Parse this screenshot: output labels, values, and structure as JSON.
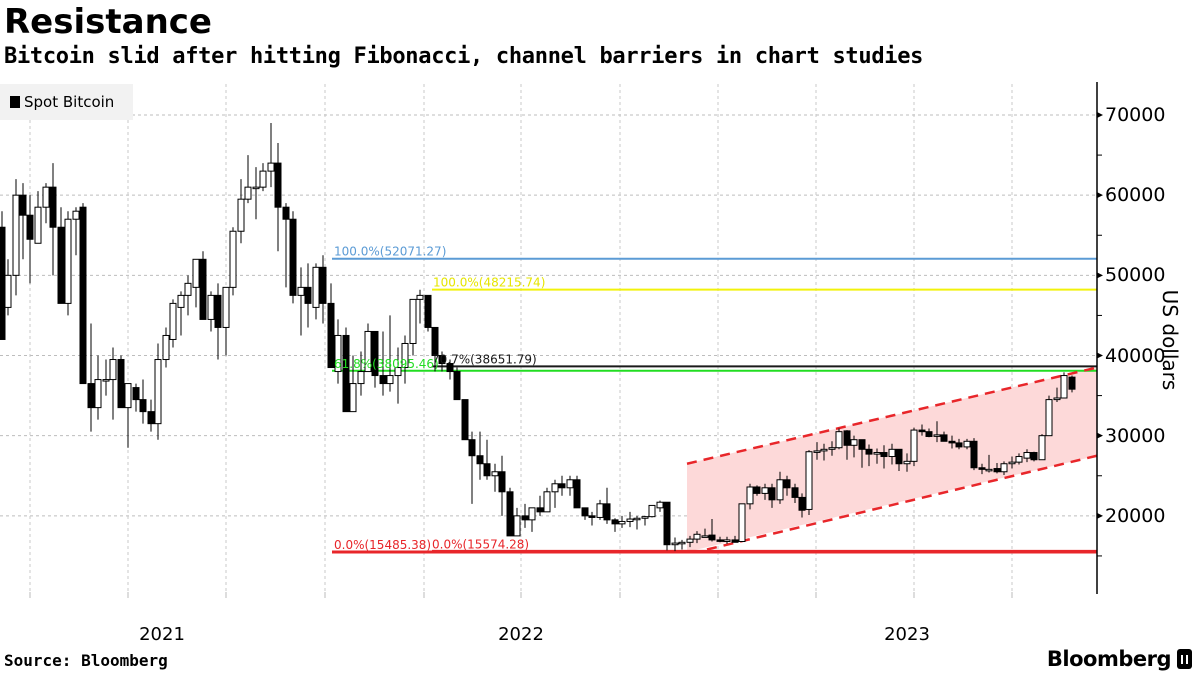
{
  "header": {
    "title": "Resistance",
    "subtitle": "Bitcoin slid after hitting Fibonacci, channel barriers in chart studies"
  },
  "legend": {
    "label": "Spot Bitcoin",
    "color": "#000000"
  },
  "footer": {
    "source": "Source: Bloomberg",
    "brand": "Bloomberg"
  },
  "chart_data": {
    "type": "candlestick",
    "title": "Resistance",
    "subtitle": "Bitcoin slid after hitting Fibonacci, channel barriers in chart studies",
    "xlabel": "",
    "ylabel": "US dollars",
    "ylim": [
      10000,
      74000
    ],
    "yticks": [
      20000,
      30000,
      40000,
      50000,
      60000,
      70000
    ],
    "xticks": [
      {
        "label": "2021",
        "x": 162
      },
      {
        "label": "2022",
        "x": 521
      },
      {
        "label": "2023",
        "x": 907
      }
    ],
    "grid": true,
    "legend": {
      "position": "top-left",
      "entries": [
        "Spot Bitcoin"
      ]
    },
    "series": [
      {
        "name": "Spot Bitcoin",
        "interval": "weekly",
        "ohlc_columns": [
          "x_px",
          "open",
          "high",
          "low",
          "close"
        ],
        "candles": [
          [
            2,
            56000,
            58000,
            48000,
            42000
          ],
          [
            8,
            46000,
            52000,
            45000,
            50000
          ],
          [
            16,
            50000,
            62000,
            47500,
            60000
          ],
          [
            23,
            60000,
            61500,
            52000,
            57500
          ],
          [
            30,
            57500,
            60000,
            49000,
            54500
          ],
          [
            38,
            54000,
            60500,
            55000,
            58500
          ],
          [
            46,
            58500,
            61500,
            56500,
            61000
          ],
          [
            53,
            61000,
            64000,
            50000,
            56000
          ],
          [
            61,
            56000,
            58500,
            46500,
            46500
          ],
          [
            68,
            46500,
            58000,
            45000,
            57000
          ],
          [
            76,
            57000,
            58500,
            52500,
            58000
          ],
          [
            83,
            58500,
            59000,
            41500,
            36500
          ],
          [
            91,
            36500,
            44000,
            30500,
            33500
          ],
          [
            98,
            33500,
            40000,
            32000,
            37000
          ],
          [
            106,
            37000,
            39500,
            35000,
            37000
          ],
          [
            113,
            37000,
            41000,
            32000,
            39500
          ],
          [
            121,
            39500,
            40000,
            34500,
            33500
          ],
          [
            128,
            33500,
            36500,
            28500,
            36500
          ],
          [
            136,
            36000,
            36500,
            33000,
            34500
          ],
          [
            143,
            34500,
            37000,
            31500,
            33000
          ],
          [
            151,
            33000,
            34500,
            30500,
            31500
          ],
          [
            158,
            31500,
            41500,
            29500,
            39500
          ],
          [
            166,
            39500,
            43500,
            38500,
            42500
          ],
          [
            173,
            42000,
            47000,
            41000,
            46500
          ],
          [
            181,
            46000,
            48000,
            42500,
            47500
          ],
          [
            188,
            47500,
            50000,
            45000,
            49000
          ],
          [
            196,
            48500,
            52000,
            46000,
            52000
          ],
          [
            203,
            52000,
            53000,
            44500,
            44500
          ],
          [
            211,
            44500,
            48000,
            43000,
            47500
          ],
          [
            218,
            47500,
            49000,
            39500,
            43500
          ],
          [
            226,
            43500,
            48500,
            40000,
            48500
          ],
          [
            233,
            48500,
            56000,
            47500,
            55500
          ],
          [
            241,
            55500,
            62000,
            54000,
            59500
          ],
          [
            248,
            59500,
            65000,
            59000,
            61000
          ],
          [
            256,
            61000,
            63500,
            57000,
            61000
          ],
          [
            263,
            61000,
            64000,
            60500,
            63000
          ],
          [
            271,
            63000,
            69000,
            61000,
            64000
          ],
          [
            278,
            64000,
            66500,
            53000,
            58500
          ],
          [
            286,
            58500,
            59000,
            48500,
            57000
          ],
          [
            293,
            57000,
            58000,
            46500,
            47500
          ],
          [
            301,
            47500,
            51000,
            42500,
            48500
          ],
          [
            308,
            48500,
            51500,
            43500,
            46500
          ],
          [
            316,
            46000,
            51500,
            44500,
            51000
          ],
          [
            323,
            51000,
            52500,
            44000,
            46500
          ],
          [
            331,
            46500,
            49000,
            38500,
            38500
          ],
          [
            338,
            38000,
            44500,
            36500,
            42500
          ],
          [
            346,
            42500,
            43500,
            33000,
            33000
          ],
          [
            353,
            33000,
            40000,
            33000,
            36500
          ],
          [
            361,
            36500,
            40500,
            35000,
            38000
          ],
          [
            368,
            38000,
            44000,
            39000,
            43000
          ],
          [
            375,
            43000,
            42000,
            36000,
            37500
          ],
          [
            383,
            37500,
            43000,
            35000,
            36500
          ],
          [
            390,
            36500,
            45000,
            35500,
            37500
          ],
          [
            398,
            37500,
            41000,
            34000,
            38500
          ],
          [
            405,
            38500,
            42500,
            36500,
            41500
          ],
          [
            413,
            41500,
            47000,
            40000,
            47000
          ],
          [
            420,
            47000,
            48200,
            44000,
            47500
          ],
          [
            428,
            47500,
            47000,
            43000,
            43500
          ],
          [
            435,
            43500,
            43500,
            38000,
            40000
          ],
          [
            442,
            40000,
            40500,
            38000,
            39000
          ],
          [
            450,
            39000,
            39500,
            37000,
            38000
          ],
          [
            457,
            38000,
            38500,
            35000,
            34500
          ],
          [
            465,
            34500,
            34500,
            29500,
            29500
          ],
          [
            472,
            29500,
            30500,
            21500,
            27500
          ],
          [
            480,
            27500,
            30500,
            24500,
            26500
          ],
          [
            487,
            26500,
            29500,
            24500,
            25000
          ],
          [
            495,
            25000,
            26500,
            23000,
            25500
          ],
          [
            502,
            25500,
            27500,
            20000,
            23000
          ],
          [
            510,
            23000,
            23500,
            17500,
            17500
          ],
          [
            517,
            17500,
            21000,
            17500,
            20000
          ],
          [
            525,
            20000,
            21500,
            18500,
            19500
          ],
          [
            532,
            19500,
            21000,
            18000,
            21000
          ],
          [
            540,
            21000,
            22500,
            20000,
            20500
          ],
          [
            547,
            20500,
            23500,
            20500,
            23000
          ],
          [
            555,
            23000,
            24500,
            21000,
            24000
          ],
          [
            562,
            24000,
            25000,
            22500,
            23500
          ],
          [
            570,
            23500,
            25000,
            22500,
            24500
          ],
          [
            577,
            24500,
            25000,
            21000,
            21000
          ],
          [
            585,
            21000,
            21000,
            19500,
            20000
          ],
          [
            592,
            20000,
            20500,
            18800,
            19800
          ],
          [
            600,
            19800,
            22000,
            19500,
            21500
          ],
          [
            607,
            21500,
            23500,
            19000,
            19500
          ],
          [
            615,
            19500,
            19700,
            18000,
            19000
          ],
          [
            622,
            19000,
            20000,
            18500,
            19300
          ],
          [
            630,
            19300,
            20500,
            18600,
            19600
          ],
          [
            637,
            19600,
            20000,
            18300,
            19700
          ],
          [
            645,
            19700,
            20000,
            18800,
            19900
          ],
          [
            652,
            19900,
            21300,
            19800,
            21300
          ],
          [
            660,
            21000,
            21900,
            20500,
            21700
          ],
          [
            667,
            21700,
            21700,
            15700,
            16400
          ],
          [
            675,
            16400,
            17300,
            15600,
            16600
          ],
          [
            682,
            16600,
            17000,
            15800,
            16700
          ],
          [
            690,
            16700,
            17500,
            16100,
            17100
          ],
          [
            697,
            17100,
            18100,
            16600,
            17700
          ],
          [
            705,
            17400,
            18400,
            17300,
            17500
          ],
          [
            712,
            17600,
            19600,
            16800,
            17000
          ],
          [
            720,
            17000,
            17400,
            16700,
            16900
          ],
          [
            727,
            16800,
            17400,
            16500,
            17000
          ],
          [
            735,
            17000,
            17500,
            16800,
            16700
          ],
          [
            742,
            16800,
            21500,
            16900,
            21500
          ],
          [
            750,
            21500,
            24000,
            20800,
            23600
          ],
          [
            757,
            23600,
            23800,
            22500,
            22800
          ],
          [
            765,
            22800,
            24000,
            22000,
            23500
          ],
          [
            772,
            23500,
            24000,
            21000,
            22000
          ],
          [
            780,
            22000,
            25500,
            21500,
            24500
          ],
          [
            787,
            24500,
            25000,
            22500,
            23500
          ],
          [
            795,
            23500,
            24000,
            21600,
            22300
          ],
          [
            802,
            22300,
            22800,
            19800,
            20700
          ],
          [
            809,
            20800,
            28200,
            20100,
            28000
          ],
          [
            817,
            28000,
            29200,
            27000,
            28100
          ],
          [
            824,
            28100,
            29000,
            26900,
            28300
          ],
          [
            832,
            28300,
            29300,
            27500,
            28500
          ],
          [
            839,
            28500,
            30900,
            28300,
            30500
          ],
          [
            847,
            30600,
            30700,
            27000,
            28800
          ],
          [
            854,
            28800,
            30000,
            27300,
            29500
          ],
          [
            862,
            29500,
            29000,
            26000,
            28300
          ],
          [
            869,
            28300,
            28900,
            26200,
            27700
          ],
          [
            877,
            27700,
            28400,
            26500,
            27900
          ],
          [
            884,
            27900,
            28800,
            25900,
            27400
          ],
          [
            892,
            27400,
            29000,
            26400,
            28300
          ],
          [
            899,
            28300,
            27800,
            25600,
            26500
          ],
          [
            907,
            26500,
            27800,
            25500,
            26800
          ],
          [
            914,
            26800,
            31000,
            26200,
            30700
          ],
          [
            922,
            30700,
            31400,
            30000,
            30500
          ],
          [
            929,
            30500,
            30900,
            29800,
            29900
          ],
          [
            937,
            30000,
            31800,
            29200,
            30100
          ],
          [
            944,
            30100,
            30500,
            29300,
            29300
          ],
          [
            952,
            29300,
            30000,
            28400,
            29100
          ],
          [
            959,
            29100,
            29600,
            28300,
            28600
          ],
          [
            967,
            28600,
            29600,
            28300,
            29300
          ],
          [
            974,
            29300,
            29700,
            25700,
            26000
          ],
          [
            982,
            26000,
            26500,
            25200,
            25800
          ],
          [
            989,
            25800,
            27600,
            25400,
            25800
          ],
          [
            997,
            25900,
            26600,
            25300,
            25500
          ],
          [
            1004,
            25500,
            26800,
            25100,
            26500
          ],
          [
            1012,
            26500,
            27400,
            25900,
            26700
          ],
          [
            1019,
            26700,
            27800,
            26400,
            27400
          ],
          [
            1027,
            27200,
            28300,
            26700,
            27900
          ],
          [
            1034,
            27900,
            28000,
            26800,
            27000
          ],
          [
            1042,
            27000,
            30200,
            27000,
            30000
          ],
          [
            1049,
            30000,
            35000,
            30000,
            34500
          ],
          [
            1057,
            34500,
            36000,
            34200,
            34700
          ],
          [
            1064,
            34700,
            37900,
            34800,
            37500
          ],
          [
            1072,
            37300,
            37500,
            35400,
            35800
          ]
        ]
      }
    ],
    "fibonacci_levels": [
      {
        "label": "100.0%(52071.27)",
        "value": 52071.27,
        "color": "#5b9bd5",
        "x_start": 332
      },
      {
        "label": "100.0%(48215.74)",
        "value": 48215.74,
        "color": "#f2f20a",
        "x_start": 432
      },
      {
        "label": "70.7%(38651.79)",
        "value": 38651.79,
        "color": "#1a1a1a",
        "x_start": 432
      },
      {
        "label": "61.8%(38095.46)",
        "value": 38095.46,
        "color": "#22dd22",
        "x_start": 332
      },
      {
        "label": "0.0%(15485.38)",
        "value": 15485.38,
        "color": "#e8262a",
        "x_start": 332
      },
      {
        "label": "0.0%(15574.28)",
        "value": 15574.28,
        "color": "#e8262a",
        "x_start": 432
      }
    ],
    "channel": {
      "x_start": 687,
      "x_end": 1097,
      "upper": [
        26500,
        38500
      ],
      "lower": [
        15500,
        27500
      ],
      "fill": "#fdd9d9",
      "line_color": "#e8262a"
    }
  },
  "axis": {
    "y_tick_labels": [
      "70000",
      "60000",
      "50000",
      "40000",
      "30000",
      "20000"
    ],
    "x_tick_labels": [
      "2021",
      "2022",
      "2023"
    ],
    "y_title": "US dollars"
  }
}
